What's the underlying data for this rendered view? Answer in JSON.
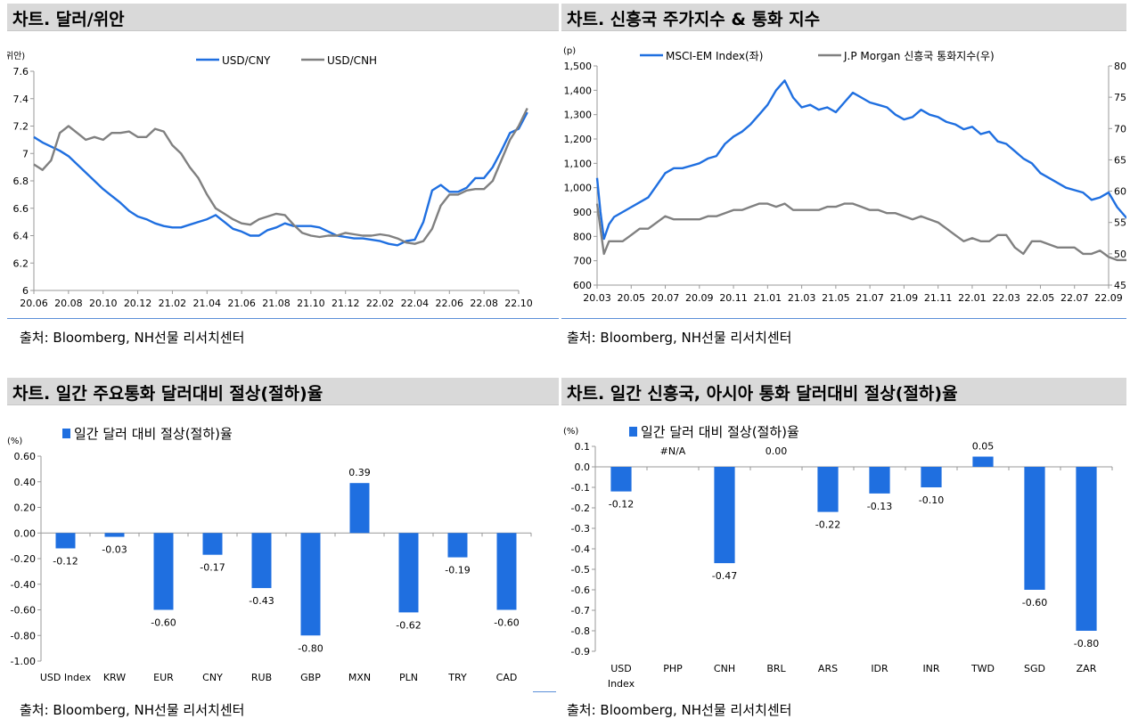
{
  "source_text": "출처: Bloomberg, NH선물 리서치센터",
  "panels": {
    "p1": {
      "title": "차트. 달러/위안",
      "chart_data": {
        "type": "line",
        "title": "차트. 달러/위안",
        "unit_label": "(위안)",
        "x_ticks": [
          "20.06",
          "20.08",
          "20.10",
          "20.12",
          "21.02",
          "21.04",
          "21.06",
          "21.08",
          "21.10",
          "21.12",
          "22.02",
          "22.04",
          "22.06",
          "22.08",
          "22.10"
        ],
        "y_ticks": [
          "6",
          "6.2",
          "6.4",
          "6.6",
          "6.8",
          "7",
          "7.2",
          "7.4",
          "7.6"
        ],
        "ylim": [
          6,
          7.6
        ],
        "legend_position": "top-right",
        "series": [
          {
            "name": "USD/CNY",
            "color": "#1f6fe0",
            "x": [
              0,
              0.5,
              1,
              1.5,
              2,
              2.5,
              3,
              3.5,
              4,
              4.5,
              5,
              5.5,
              6,
              6.5,
              7,
              7.5,
              8,
              8.5,
              9,
              9.5,
              10,
              10.5,
              11,
              11.5,
              12,
              12.5,
              13,
              13.5,
              14,
              14.5,
              15,
              15.5,
              16,
              16.5,
              17,
              17.5,
              18,
              18.5,
              19,
              19.5,
              20,
              20.5,
              21,
              21.5,
              22,
              22.5,
              23,
              23.5,
              24,
              24.5,
              25,
              25.5,
              26,
              26.5,
              27,
              27.5,
              28,
              28.5
            ],
            "y": [
              7.12,
              7.08,
              7.05,
              7.02,
              6.98,
              6.92,
              6.86,
              6.8,
              6.74,
              6.69,
              6.64,
              6.58,
              6.54,
              6.52,
              6.49,
              6.47,
              6.46,
              6.46,
              6.48,
              6.5,
              6.52,
              6.55,
              6.5,
              6.45,
              6.43,
              6.4,
              6.4,
              6.44,
              6.46,
              6.49,
              6.47,
              6.47,
              6.47,
              6.46,
              6.43,
              6.4,
              6.39,
              6.38,
              6.38,
              6.37,
              6.36,
              6.34,
              6.33,
              6.36,
              6.37,
              6.5,
              6.73,
              6.77,
              6.72,
              6.72,
              6.75,
              6.82,
              6.82,
              6.9,
              7.02,
              7.15,
              7.18,
              7.3
            ]
          },
          {
            "name": "USD/CNH",
            "color": "#808080",
            "x": [
              0,
              0.5,
              1,
              1.5,
              2,
              2.5,
              3,
              3.5,
              4,
              4.5,
              5,
              5.5,
              6,
              6.5,
              7,
              7.5,
              8,
              8.5,
              9,
              9.5,
              10,
              10.5,
              11,
              11.5,
              12,
              12.5,
              13,
              13.5,
              14,
              14.5,
              15,
              15.5,
              16,
              16.5,
              17,
              17.5,
              18,
              18.5,
              19,
              19.5,
              20,
              20.5,
              21,
              21.5,
              22,
              22.5,
              23,
              23.5,
              24,
              24.5,
              25,
              25.5,
              26,
              26.5,
              27,
              27.5,
              28,
              28.5
            ],
            "y": [
              6.92,
              6.88,
              6.95,
              7.15,
              7.2,
              7.15,
              7.1,
              7.12,
              7.1,
              7.15,
              7.15,
              7.16,
              7.12,
              7.12,
              7.18,
              7.16,
              7.06,
              7.0,
              6.9,
              6.82,
              6.7,
              6.6,
              6.56,
              6.52,
              6.49,
              6.48,
              6.52,
              6.54,
              6.56,
              6.55,
              6.48,
              6.42,
              6.4,
              6.39,
              6.4,
              6.4,
              6.42,
              6.41,
              6.4,
              6.4,
              6.41,
              6.4,
              6.38,
              6.35,
              6.34,
              6.36,
              6.45,
              6.62,
              6.7,
              6.7,
              6.73,
              6.74,
              6.74,
              6.8,
              6.95,
              7.1,
              7.2,
              7.33
            ]
          }
        ]
      }
    },
    "p2": {
      "title": "차트. 신흥국 주가지수 & 통화 지수",
      "chart_data": {
        "type": "line",
        "title": "차트. 신흥국 주가지수 & 통화 지수",
        "unit_label": "(p)",
        "x_ticks": [
          "20.03",
          "20.05",
          "20.07",
          "20.09",
          "20.11",
          "21.01",
          "21.03",
          "21.05",
          "21.07",
          "21.09",
          "21.11",
          "22.01",
          "22.03",
          "22.05",
          "22.07",
          "22.09"
        ],
        "y_left_ticks": [
          "600",
          "700",
          "800",
          "900",
          "1,000",
          "1,100",
          "1,200",
          "1,300",
          "1,400",
          "1,500"
        ],
        "y_right_ticks": [
          "45",
          "50",
          "55",
          "60",
          "65",
          "70",
          "75",
          "80"
        ],
        "ylim_left": [
          600,
          1500
        ],
        "ylim_right": [
          45,
          80
        ],
        "legend_position": "top",
        "series": [
          {
            "name": "MSCI-EM Index(좌)",
            "axis": "left",
            "color": "#1f6fe0",
            "x": [
              0,
              0.2,
              0.4,
              0.7,
              1,
              1.5,
              2,
              2.5,
              3,
              3.5,
              4,
              4.5,
              5,
              5.5,
              6,
              6.5,
              7,
              7.5,
              8,
              8.5,
              9,
              9.5,
              10,
              10.5,
              11,
              11.5,
              12,
              12.5,
              13,
              13.5,
              14,
              14.5,
              15,
              15.5,
              16,
              16.5,
              17,
              17.5,
              18,
              18.5,
              19,
              19.5,
              20,
              20.5,
              21,
              21.5,
              22,
              22.5,
              23,
              23.5,
              24,
              24.5,
              25,
              25.5,
              26,
              26.5,
              27,
              27.5,
              28,
              28.5,
              29,
              29.5,
              30,
              30.5,
              31,
              31.5,
              32
            ],
            "y": [
              1040,
              900,
              790,
              850,
              880,
              900,
              920,
              940,
              960,
              1010,
              1060,
              1080,
              1080,
              1090,
              1100,
              1120,
              1130,
              1180,
              1210,
              1230,
              1260,
              1300,
              1340,
              1400,
              1440,
              1370,
              1330,
              1340,
              1320,
              1330,
              1310,
              1350,
              1390,
              1370,
              1350,
              1340,
              1330,
              1300,
              1280,
              1290,
              1320,
              1300,
              1290,
              1270,
              1260,
              1240,
              1250,
              1220,
              1230,
              1190,
              1180,
              1150,
              1120,
              1100,
              1060,
              1040,
              1020,
              1000,
              990,
              980,
              950,
              960,
              980,
              920,
              880,
              850,
              850
            ]
          },
          {
            "name": "J.P Morgan 신흥국 통화지수(우)",
            "axis": "right",
            "color": "#808080",
            "x": [
              0,
              0.2,
              0.4,
              0.7,
              1,
              1.5,
              2,
              2.5,
              3,
              3.5,
              4,
              4.5,
              5,
              5.5,
              6,
              6.5,
              7,
              7.5,
              8,
              8.5,
              9,
              9.5,
              10,
              10.5,
              11,
              11.5,
              12,
              12.5,
              13,
              13.5,
              14,
              14.5,
              15,
              15.5,
              16,
              16.5,
              17,
              17.5,
              18,
              18.5,
              19,
              19.5,
              20,
              20.5,
              21,
              21.5,
              22,
              22.5,
              23,
              23.5,
              24,
              24.5,
              25,
              25.5,
              26,
              26.5,
              27,
              27.5,
              28,
              28.5,
              29,
              29.5,
              30,
              30.5,
              31,
              31.5,
              32
            ],
            "y": [
              58,
              54,
              50,
              52,
              52,
              52,
              53,
              54,
              54,
              55,
              56,
              55.5,
              55.5,
              55.5,
              55.5,
              56,
              56,
              56.5,
              57,
              57,
              57.5,
              58,
              58,
              57.5,
              58,
              57,
              57,
              57,
              57,
              57.5,
              57.5,
              58,
              58,
              57.5,
              57,
              57,
              56.5,
              56.5,
              56,
              55.5,
              56,
              55.5,
              55,
              54,
              53,
              52,
              52.5,
              52,
              52,
              53,
              53,
              51,
              50,
              52,
              52,
              51.5,
              51,
              51,
              51,
              50,
              50,
              50.5,
              49.5,
              49,
              49,
              49,
              49.5
            ]
          }
        ]
      }
    },
    "p3": {
      "title": "차트. 일간 주요통화 달러대비 절상(절하)율",
      "chart_data": {
        "type": "bar",
        "title": "차트. 일간 주요통화 달러대비 절상(절하)율",
        "unit_label": "(%)",
        "legend": "일간 달러 대비 절상(절하)율",
        "color": "#1f6fe0",
        "categories": [
          "USD Index",
          "KRW",
          "EUR",
          "CNY",
          "RUB",
          "GBP",
          "MXN",
          "PLN",
          "TRY",
          "CAD"
        ],
        "values": [
          -0.12,
          -0.03,
          -0.6,
          -0.17,
          -0.43,
          -0.8,
          0.39,
          -0.62,
          -0.19,
          -0.6
        ],
        "labels": [
          "-0.12",
          "-0.03",
          "-0.60",
          "-0.17",
          "-0.43",
          "-0.80",
          "0.39",
          "-0.62",
          "-0.19",
          "-0.60"
        ],
        "y_ticks": [
          "0.60",
          "0.40",
          "0.20",
          "0.00",
          "-0.20",
          "-0.40",
          "-0.60",
          "-0.80",
          "-1.00"
        ],
        "ylim": [
          -1.0,
          0.6
        ]
      }
    },
    "p4": {
      "title": "차트. 일간 신흥국, 아시아 통화 달러대비 절상(절하)율",
      "chart_data": {
        "type": "bar",
        "title": "차트. 일간 신흥국, 아시아 통화 달러대비 절상(절하)율",
        "unit_label": "(%)",
        "legend": "일간 달러 대비 절상(절하)율",
        "color": "#1f6fe0",
        "categories": [
          "USD Index",
          "PHP",
          "CNH",
          "BRL",
          "ARS",
          "IDR",
          "INR",
          "TWD",
          "SGD",
          "ZAR"
        ],
        "values": [
          -0.12,
          null,
          -0.47,
          0.0,
          -0.22,
          -0.13,
          -0.1,
          0.05,
          -0.6,
          -0.8
        ],
        "labels": [
          "-0.12",
          "#N/A",
          "-0.47",
          "0.00",
          "-0.22",
          "-0.13",
          "-0.10",
          "0.05",
          "-0.60",
          "-0.80"
        ],
        "y_ticks": [
          "0.1",
          "0.0",
          "-0.1",
          "-0.2",
          "-0.3",
          "-0.4",
          "-0.5",
          "-0.6",
          "-0.7",
          "-0.8",
          "-0.9"
        ],
        "ylim": [
          -0.9,
          0.1
        ]
      }
    }
  }
}
